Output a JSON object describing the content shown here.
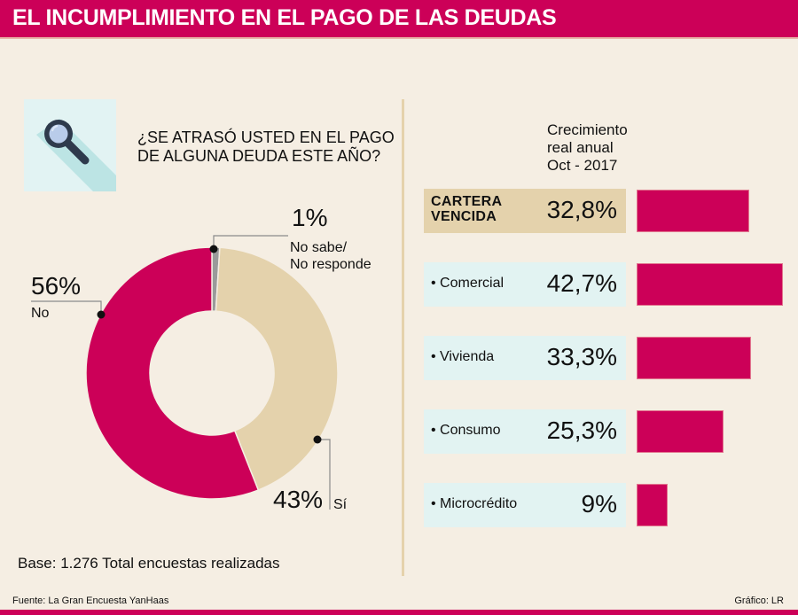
{
  "header": {
    "title": "EL INCUMPLIMIENTO EN EL PAGO DE LAS DEUDAS"
  },
  "colors": {
    "brand": "#CC0058",
    "beige": "#E4D2AC",
    "light_blue": "#E2F3F2",
    "background": "#F5EEE3",
    "gray": "#999999"
  },
  "survey": {
    "icon": "magnifier-icon",
    "question_lines": [
      "¿SE ATRASÓ USTED EN EL PAGO",
      "DE ALGUNA DEUDA ESTE AÑO?"
    ],
    "base_note": "Base: 1.276 Total encuestas realizadas"
  },
  "growth": {
    "heading_lines": [
      "Crecimiento",
      "real anual",
      "Oct - 2017"
    ]
  },
  "chart_data": [
    {
      "type": "pie",
      "variant": "donut",
      "title": "¿SE ATRASÓ USTED EN EL PAGO DE ALGUNA DEUDA ESTE AÑO?",
      "slices": [
        {
          "key": "ns",
          "label_lines": [
            "No sabe/",
            "No responde"
          ],
          "value": 1,
          "display": "1%",
          "color": "#9A9A9A"
        },
        {
          "key": "si",
          "label_lines": [
            "Sí"
          ],
          "value": 43,
          "display": "43%",
          "color": "#E4D2AC"
        },
        {
          "key": "no",
          "label_lines": [
            "No"
          ],
          "value": 56,
          "display": "56%",
          "color": "#CC0058"
        }
      ],
      "unit": "%"
    },
    {
      "type": "bar",
      "orientation": "horizontal",
      "title": "Crecimiento real anual Oct - 2017",
      "categories": [
        "CARTERA VENCIDA",
        "• Comercial",
        "• Vivienda",
        "• Consumo",
        "• Microcrédito"
      ],
      "category_lines": [
        [
          "CARTERA",
          "VENCIDA"
        ],
        [
          "• Comercial"
        ],
        [
          "• Vivienda"
        ],
        [
          "• Consumo"
        ],
        [
          "• Microcrédito"
        ]
      ],
      "values": [
        32.8,
        42.7,
        33.3,
        25.3,
        9
      ],
      "display_values": [
        "32,8%",
        "42,7%",
        "33,3%",
        "25,3%",
        "9%"
      ],
      "xlim": [
        0,
        42.7
      ],
      "unit": "%",
      "bar_color": "#CC0058",
      "highlight_first": true
    }
  ],
  "footer": {
    "source": "Fuente:  La Gran Encuesta YanHaas",
    "credit": "Gráfico: LR"
  }
}
